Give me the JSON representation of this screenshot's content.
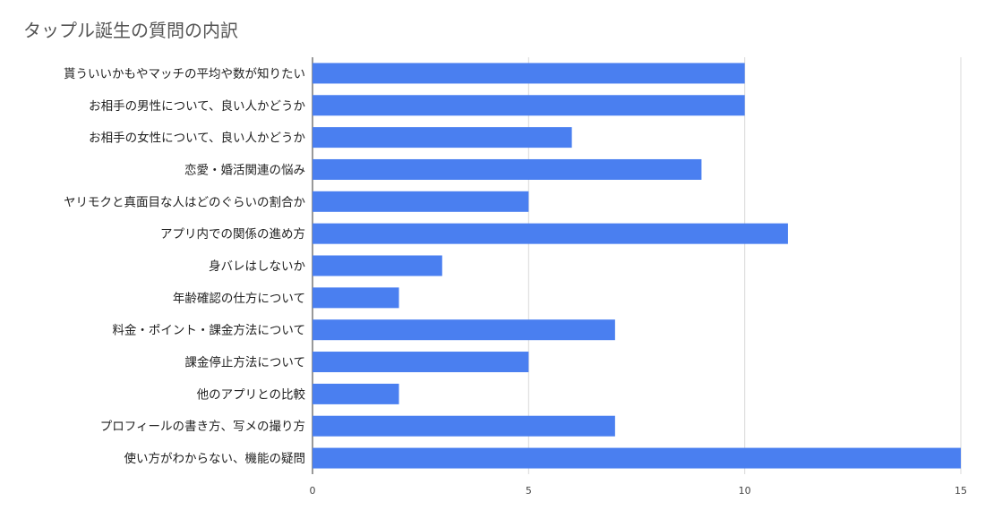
{
  "chart_data": {
    "type": "bar",
    "orientation": "horizontal",
    "title": "タップル誕生の質問の内訳",
    "xlabel": "",
    "ylabel": "",
    "categories": [
      "貰ういいかもやマッチの平均や数が知りたい",
      "お相手の男性について、良い人かどうか",
      "お相手の女性について、良い人かどうか",
      "恋愛・婚活関連の悩み",
      "ヤリモクと真面目な人はどのぐらいの割合か",
      "アプリ内での関係の進め方",
      "身バレはしないか",
      "年齢確認の仕方について",
      "料金・ポイント・課金方法について",
      "課金停止方法について",
      "他のアプリとの比較",
      "プロフィールの書き方、写メの撮り方",
      "使い方がわからない、機能の疑問"
    ],
    "values": [
      10,
      10,
      6,
      9,
      5,
      11,
      3,
      2,
      7,
      5,
      2,
      7,
      15
    ],
    "xlim": [
      0,
      15
    ],
    "xticks": [
      "0",
      "5",
      "10",
      "15"
    ],
    "grid": true,
    "legend": "none",
    "bar_color": "#4a7ff0"
  }
}
